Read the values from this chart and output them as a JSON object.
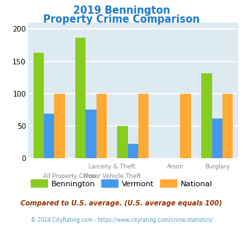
{
  "title_line1": "2019 Bennington",
  "title_line2": "Property Crime Comparison",
  "title_color": "#1a7acc",
  "categories": [
    "All Property Crime",
    "Larceny & Theft",
    "Motor Vehicle Theft",
    "Arson",
    "Burglary"
  ],
  "bennington": [
    163,
    187,
    50,
    0,
    131
  ],
  "vermont": [
    69,
    75,
    22,
    0,
    61
  ],
  "national": [
    100,
    100,
    100,
    100,
    100
  ],
  "bar_colors": {
    "bennington": "#88cc22",
    "vermont": "#4499ee",
    "national": "#ffaa33"
  },
  "ylim": [
    0,
    210
  ],
  "yticks": [
    0,
    50,
    100,
    150,
    200
  ],
  "plot_bg": "#ddeaf2",
  "legend_labels": [
    "Bennington",
    "Vermont",
    "National"
  ],
  "footnote1": "Compared to U.S. average. (U.S. average equals 100)",
  "footnote2": "© 2024 CityRating.com - https://www.cityrating.com/crime-statistics/",
  "footnote1_color": "#993300",
  "footnote2_color": "#5599bb"
}
